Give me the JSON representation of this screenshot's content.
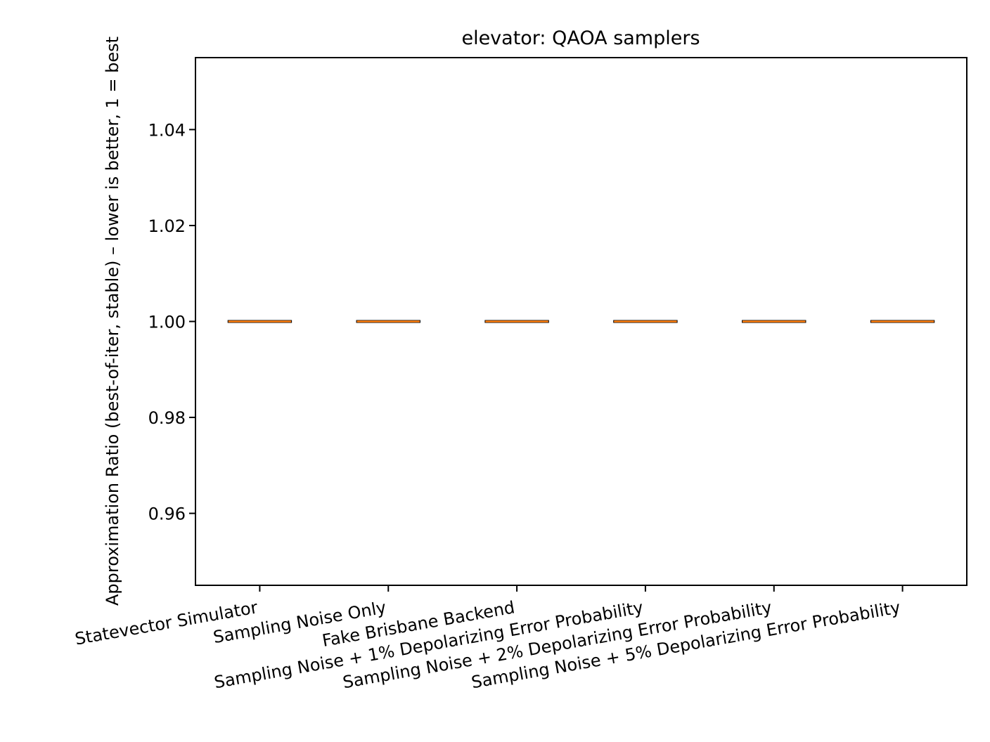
{
  "chart_data": {
    "type": "box",
    "title": "elevator: QAOA samplers",
    "xlabel": "",
    "ylabel": "Approximation Ratio (best-of-iter, stable) – lower is better, 1 = best",
    "ylim": [
      0.945,
      1.055
    ],
    "yticks": [
      0.96,
      0.98,
      1.0,
      1.02,
      1.04
    ],
    "ytick_labels": [
      "0.96",
      "0.98",
      "1.00",
      "1.02",
      "1.04"
    ],
    "categories": [
      "Statevector Simulator",
      "Sampling Noise Only",
      "Fake Brisbane Backend",
      "Sampling Noise + 1% Depolarizing Error Probability",
      "Sampling Noise + 2% Depolarizing Error Probability",
      "Sampling Noise + 5% Depolarizing Error Probability"
    ],
    "values": [
      1.0,
      1.0,
      1.0,
      1.0,
      1.0,
      1.0
    ],
    "grid": false,
    "colors": {
      "box": "#000000",
      "median": "#ff7f0e"
    }
  }
}
